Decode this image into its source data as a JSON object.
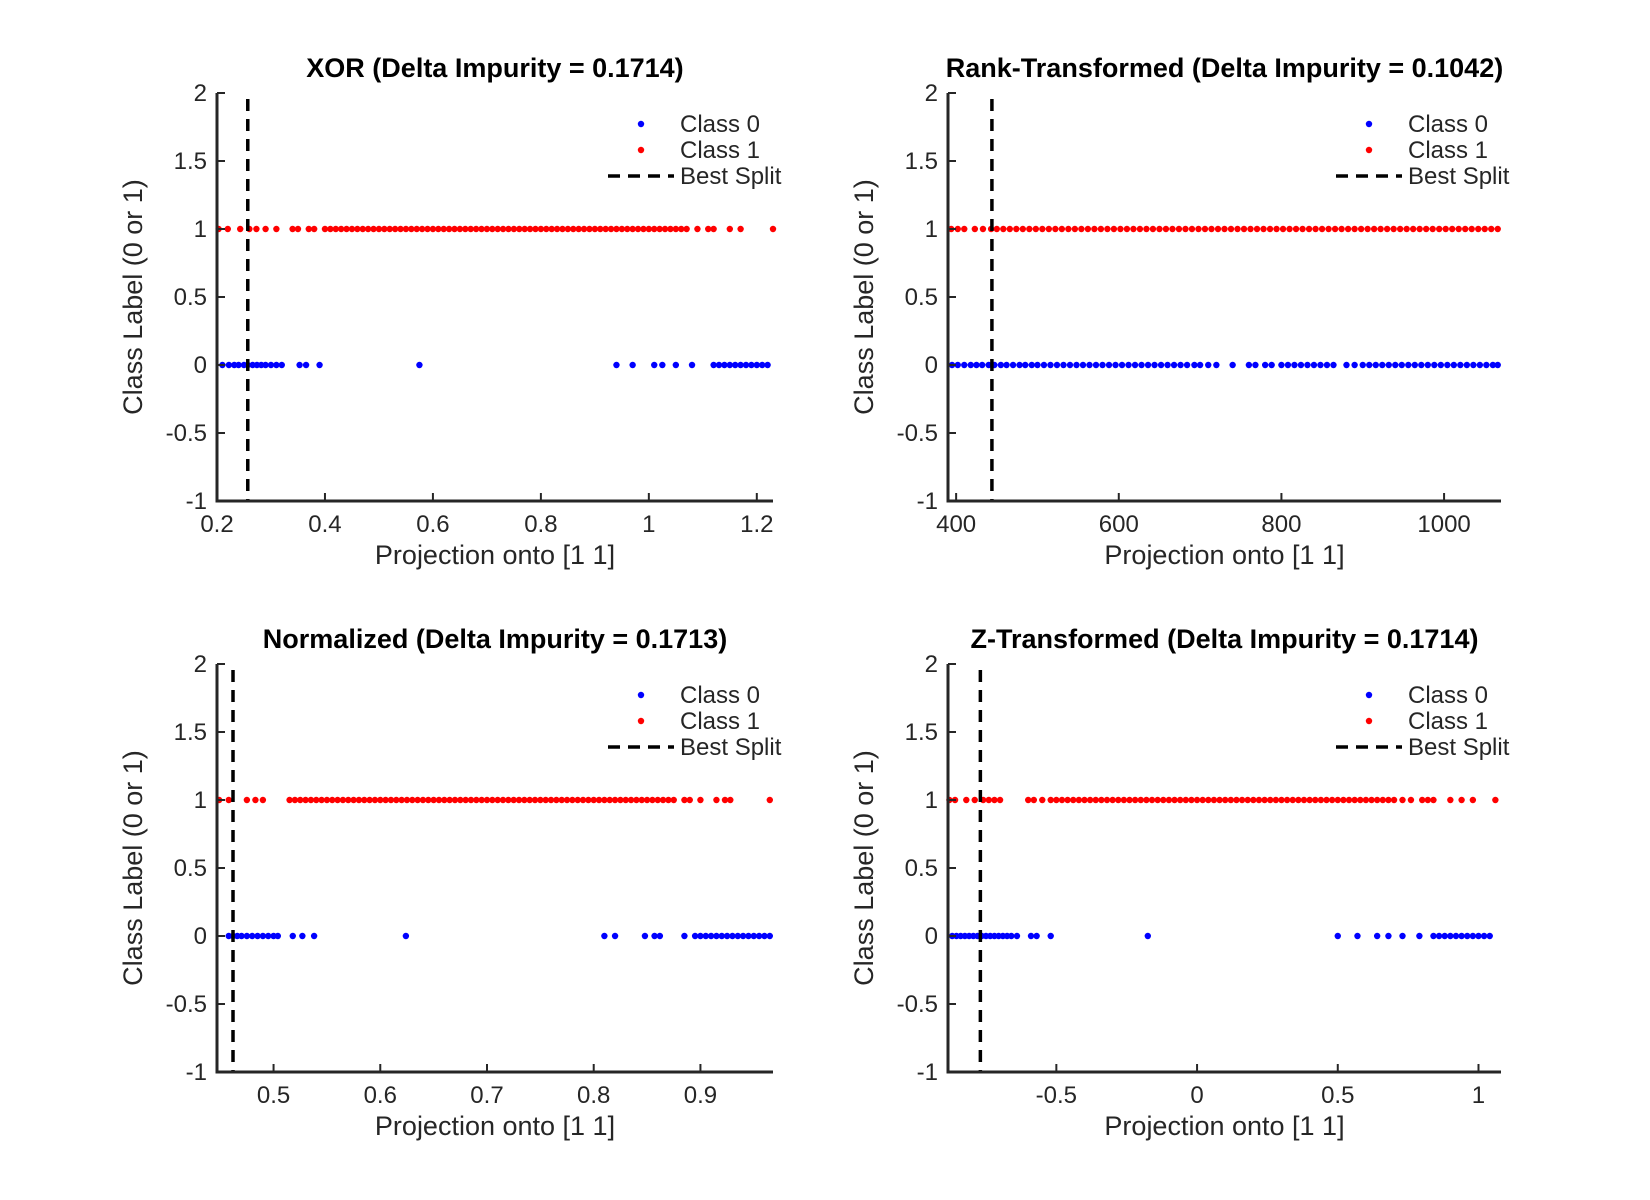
{
  "chart_data": [
    {
      "type": "scatter",
      "title": "XOR (Delta Impurity = 0.1714)",
      "xlabel": "Projection onto [1 1]",
      "ylabel": "Class Label (0 or 1)",
      "xlim": [
        0.2,
        1.23
      ],
      "ylim": [
        -1,
        2
      ],
      "xticks": [
        0.2,
        0.4,
        0.6,
        0.8,
        1,
        1.2
      ],
      "xtick_labels": [
        "0.2",
        "0.4",
        "0.6",
        "0.8",
        "1",
        "1.2"
      ],
      "yticks": [
        -1,
        -0.5,
        0,
        0.5,
        1,
        1.5,
        2
      ],
      "ytick_labels": [
        "-1",
        "-0.5",
        "0",
        "0.5",
        "1",
        "1.5",
        "2"
      ],
      "split": 0.257,
      "legend": [
        "Class 0",
        "Class 1",
        "Best Split"
      ],
      "legend_position": "top-right",
      "grid": false,
      "colors": {
        "class0": "#0000ff",
        "class1": "#ff0000",
        "split": "#000000"
      },
      "series": [
        {
          "name": "Class 0",
          "y": 0,
          "x": [
            0.21,
            0.222,
            0.232,
            0.24,
            0.25,
            0.257,
            0.266,
            0.274,
            0.282,
            0.29,
            0.3,
            0.31,
            0.32,
            0.353,
            0.365,
            0.39,
            0.575,
            0.94,
            0.97,
            1.01,
            1.025,
            1.05,
            1.08,
            1.12,
            1.13,
            1.14,
            1.15,
            1.16,
            1.17,
            1.18,
            1.19,
            1.2,
            1.21,
            1.22
          ]
        },
        {
          "name": "Class 1",
          "y": 1,
          "x": [
            0.203,
            0.22,
            0.243,
            0.26,
            0.273,
            0.29,
            0.31,
            0.34,
            0.35,
            0.37,
            0.38,
            0.4,
            0.41,
            0.42,
            0.43,
            0.44,
            0.45,
            0.46,
            0.47,
            0.48,
            0.49,
            0.5,
            0.51,
            0.52,
            0.53,
            0.54,
            0.55,
            0.56,
            0.57,
            0.58,
            0.59,
            0.6,
            0.61,
            0.62,
            0.63,
            0.64,
            0.65,
            0.66,
            0.67,
            0.68,
            0.69,
            0.7,
            0.71,
            0.72,
            0.73,
            0.74,
            0.75,
            0.76,
            0.77,
            0.78,
            0.79,
            0.8,
            0.81,
            0.82,
            0.83,
            0.84,
            0.85,
            0.86,
            0.87,
            0.88,
            0.89,
            0.9,
            0.91,
            0.92,
            0.93,
            0.94,
            0.95,
            0.96,
            0.97,
            0.98,
            0.99,
            1.0,
            1.01,
            1.02,
            1.03,
            1.04,
            1.05,
            1.06,
            1.07,
            1.09,
            1.11,
            1.12,
            1.15,
            1.17,
            1.23
          ]
        }
      ]
    },
    {
      "type": "scatter",
      "title": "Rank-Transformed (Delta Impurity = 0.1042)",
      "xlabel": "Projection onto [1 1]",
      "ylabel": "Class Label (0 or 1)",
      "xlim": [
        390,
        1070
      ],
      "ylim": [
        -1,
        2
      ],
      "xticks": [
        400,
        600,
        800,
        1000
      ],
      "xtick_labels": [
        "400",
        "600",
        "800",
        "1000"
      ],
      "yticks": [
        -1,
        -0.5,
        0,
        0.5,
        1,
        1.5,
        2
      ],
      "ytick_labels": [
        "-1",
        "-0.5",
        "0",
        "0.5",
        "1",
        "1.5",
        "2"
      ],
      "split": 444,
      "legend": [
        "Class 0",
        "Class 1",
        "Best Split"
      ],
      "legend_position": "top-right",
      "grid": false,
      "colors": {
        "class0": "#0000ff",
        "class1": "#ff0000",
        "split": "#000000"
      },
      "series": [
        {
          "name": "Class 0",
          "y": 0,
          "x": [
            395,
            402,
            410,
            418,
            425,
            432,
            440,
            447,
            455,
            462,
            470,
            478,
            485,
            493,
            500,
            508,
            516,
            524,
            532,
            540,
            548,
            556,
            564,
            572,
            580,
            588,
            596,
            604,
            612,
            620,
            628,
            636,
            644,
            652,
            660,
            668,
            676,
            684,
            693,
            700,
            710,
            720,
            740,
            760,
            768,
            780,
            788,
            800,
            808,
            816,
            824,
            832,
            840,
            848,
            856,
            864,
            880,
            890,
            900,
            908,
            916,
            924,
            932,
            940,
            948,
            956,
            964,
            972,
            980,
            988,
            996,
            1004,
            1012,
            1020,
            1028,
            1036,
            1044,
            1052,
            1060,
            1066
          ]
        },
        {
          "name": "Class 1",
          "y": 1,
          "x": [
            394,
            402,
            410,
            423,
            433,
            443,
            450,
            458,
            466,
            474,
            482,
            490,
            498,
            506,
            514,
            522,
            530,
            538,
            546,
            554,
            562,
            570,
            578,
            586,
            594,
            602,
            610,
            618,
            626,
            634,
            642,
            650,
            658,
            666,
            674,
            682,
            690,
            698,
            706,
            714,
            722,
            730,
            738,
            746,
            754,
            762,
            770,
            778,
            786,
            794,
            802,
            810,
            818,
            826,
            834,
            842,
            850,
            858,
            866,
            874,
            882,
            890,
            898,
            906,
            914,
            922,
            930,
            938,
            946,
            954,
            962,
            970,
            978,
            986,
            994,
            1002,
            1010,
            1018,
            1026,
            1034,
            1042,
            1050,
            1058,
            1066
          ]
        }
      ]
    },
    {
      "type": "scatter",
      "title": "Normalized (Delta Impurity = 0.1713)",
      "xlabel": "Projection onto [1 1]",
      "ylabel": "Class Label (0 or 1)",
      "xlim": [
        0.447,
        0.968
      ],
      "ylim": [
        -1,
        2
      ],
      "xticks": [
        0.5,
        0.6,
        0.7,
        0.8,
        0.9
      ],
      "xtick_labels": [
        "0.5",
        "0.6",
        "0.7",
        "0.8",
        "0.9"
      ],
      "yticks": [
        -1,
        -0.5,
        0,
        0.5,
        1,
        1.5,
        2
      ],
      "ytick_labels": [
        "-1",
        "-0.5",
        "0",
        "0.5",
        "1",
        "1.5",
        "2"
      ],
      "split": 0.462,
      "legend": [
        "Class 0",
        "Class 1",
        "Best Split"
      ],
      "legend_position": "top-right",
      "grid": false,
      "colors": {
        "class0": "#0000ff",
        "class1": "#ff0000",
        "split": "#000000"
      },
      "series": [
        {
          "name": "Class 0",
          "y": 0,
          "x": [
            0.458,
            0.462,
            0.466,
            0.47,
            0.475,
            0.48,
            0.485,
            0.49,
            0.495,
            0.5,
            0.504,
            0.518,
            0.527,
            0.538,
            0.624,
            0.81,
            0.82,
            0.848,
            0.857,
            0.862,
            0.885,
            0.895,
            0.9,
            0.905,
            0.91,
            0.915,
            0.92,
            0.925,
            0.93,
            0.935,
            0.94,
            0.945,
            0.95,
            0.955,
            0.96,
            0.965
          ]
        },
        {
          "name": "Class 1",
          "y": 1,
          "x": [
            0.449,
            0.458,
            0.475,
            0.483,
            0.49,
            0.515,
            0.52,
            0.525,
            0.53,
            0.535,
            0.54,
            0.545,
            0.55,
            0.555,
            0.56,
            0.565,
            0.57,
            0.575,
            0.58,
            0.585,
            0.59,
            0.595,
            0.6,
            0.605,
            0.61,
            0.615,
            0.62,
            0.625,
            0.63,
            0.635,
            0.64,
            0.645,
            0.65,
            0.655,
            0.66,
            0.665,
            0.67,
            0.675,
            0.68,
            0.685,
            0.69,
            0.695,
            0.7,
            0.705,
            0.71,
            0.715,
            0.72,
            0.725,
            0.73,
            0.735,
            0.74,
            0.745,
            0.75,
            0.755,
            0.76,
            0.765,
            0.77,
            0.775,
            0.78,
            0.785,
            0.79,
            0.795,
            0.8,
            0.805,
            0.81,
            0.815,
            0.82,
            0.825,
            0.83,
            0.835,
            0.84,
            0.845,
            0.85,
            0.855,
            0.86,
            0.865,
            0.87,
            0.875,
            0.885,
            0.89,
            0.9,
            0.915,
            0.923,
            0.928,
            0.965
          ]
        }
      ]
    },
    {
      "type": "scatter",
      "title": "Z-Transformed (Delta Impurity = 0.1714)",
      "xlabel": "Projection onto [1 1]",
      "ylabel": "Class Label (0 or 1)",
      "xlim": [
        -0.885,
        1.08
      ],
      "ylim": [
        -1,
        2
      ],
      "xticks": [
        -0.5,
        0,
        0.5,
        1
      ],
      "xtick_labels": [
        "-0.5",
        "0",
        "0.5",
        "1"
      ],
      "yticks": [
        -1,
        -0.5,
        0,
        0.5,
        1,
        1.5,
        2
      ],
      "ytick_labels": [
        "-1",
        "-0.5",
        "0",
        "0.5",
        "1",
        "1.5",
        "2"
      ],
      "split": -0.77,
      "legend": [
        "Class 0",
        "Class 1",
        "Best Split"
      ],
      "legend_position": "top-right",
      "grid": false,
      "colors": {
        "class0": "#0000ff",
        "class1": "#ff0000",
        "split": "#000000"
      },
      "series": [
        {
          "name": "Class 0",
          "y": 0,
          "x": [
            -0.87,
            -0.855,
            -0.84,
            -0.825,
            -0.81,
            -0.795,
            -0.78,
            -0.765,
            -0.75,
            -0.735,
            -0.72,
            -0.705,
            -0.69,
            -0.675,
            -0.66,
            -0.64,
            -0.59,
            -0.57,
            -0.52,
            -0.175,
            0.5,
            0.57,
            0.64,
            0.68,
            0.73,
            0.79,
            0.84,
            0.86,
            0.88,
            0.9,
            0.92,
            0.94,
            0.96,
            0.98,
            1.0,
            1.02,
            1.04
          ]
        },
        {
          "name": "Class 1",
          "y": 1,
          "x": [
            -0.88,
            -0.86,
            -0.82,
            -0.79,
            -0.76,
            -0.74,
            -0.72,
            -0.7,
            -0.6,
            -0.58,
            -0.55,
            -0.52,
            -0.5,
            -0.48,
            -0.46,
            -0.44,
            -0.42,
            -0.4,
            -0.38,
            -0.36,
            -0.34,
            -0.32,
            -0.3,
            -0.28,
            -0.26,
            -0.24,
            -0.22,
            -0.2,
            -0.18,
            -0.16,
            -0.14,
            -0.12,
            -0.1,
            -0.08,
            -0.06,
            -0.04,
            -0.02,
            0.0,
            0.02,
            0.04,
            0.06,
            0.08,
            0.1,
            0.12,
            0.14,
            0.16,
            0.18,
            0.2,
            0.22,
            0.24,
            0.26,
            0.28,
            0.3,
            0.32,
            0.34,
            0.36,
            0.38,
            0.4,
            0.42,
            0.44,
            0.46,
            0.48,
            0.5,
            0.52,
            0.54,
            0.56,
            0.58,
            0.6,
            0.62,
            0.64,
            0.66,
            0.68,
            0.7,
            0.73,
            0.76,
            0.8,
            0.82,
            0.84,
            0.9,
            0.94,
            0.98,
            1.06
          ]
        }
      ]
    }
  ]
}
